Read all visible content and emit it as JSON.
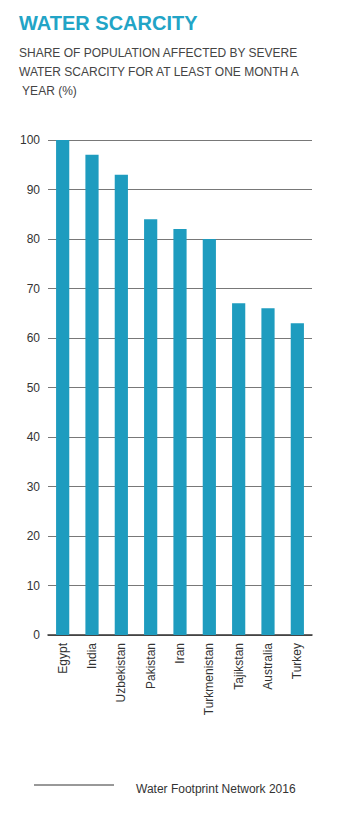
{
  "chart_data": {
    "type": "bar",
    "title": "WATER SCARCITY",
    "subtitle": "SHARE OF POPULATION AFFECTED BY SEVERE WATER SCARCITY FOR AT LEAST ONE MONTH A YEAR (%)",
    "source": "Water Footprint Network 2016",
    "categories": [
      "Egypt",
      "India",
      "Uzbekistan",
      "Pakistan",
      "Iran",
      "Turkmenistan",
      "Tajikstan",
      "Australia",
      "Turkey"
    ],
    "values": [
      100,
      97,
      93,
      84,
      82,
      80,
      67,
      66,
      63
    ],
    "color": "#1e9cbf",
    "ylim": [
      0,
      100
    ],
    "yticks": [
      0,
      10,
      20,
      30,
      40,
      50,
      60,
      70,
      80,
      90,
      100
    ],
    "grid": true
  }
}
